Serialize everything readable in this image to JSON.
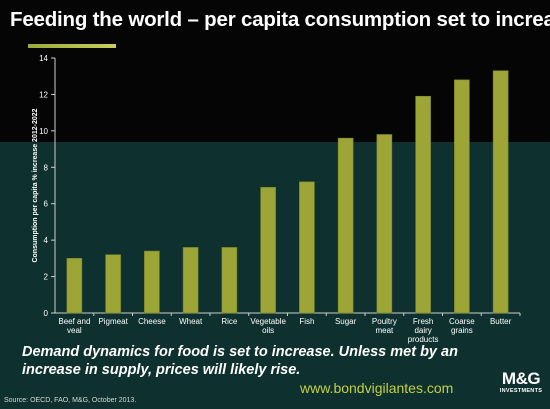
{
  "slide": {
    "title": "Feeding the world – per capita consumption set to increase",
    "caption": "Demand dynamics for food is set to increase. Unless met by an increase in supply, prices will likely rise.",
    "website": "www.bondvigilantes.com",
    "source": "Source: OECD,  FAO,  M&G, October 2013.",
    "logo": {
      "mark": "M&G",
      "sub": "INVESTMENTS"
    }
  },
  "colors": {
    "bar": "#9ca536",
    "bar_edge": "#7c8526",
    "axis": "#cfcfcf",
    "text": "#ffffff",
    "accent": "#c4d042"
  },
  "chart_data": {
    "type": "bar",
    "categories": [
      "Beef and veal",
      "Pigmeat",
      "Cheese",
      "Wheat",
      "Rice",
      "Vegetable oils",
      "Fish",
      "Sugar",
      "Poultry meat",
      "Fresh dairy products",
      "Coarse grains",
      "Butter"
    ],
    "category_lines": [
      [
        "Beef and",
        "veal"
      ],
      [
        "Pigmeat"
      ],
      [
        "Cheese"
      ],
      [
        "Wheat"
      ],
      [
        "Rice"
      ],
      [
        "Vegetable",
        "oils"
      ],
      [
        "Fish"
      ],
      [
        "Sugar"
      ],
      [
        "Poultry",
        "meat"
      ],
      [
        "Fresh",
        "dairy",
        "products"
      ],
      [
        "Coarse",
        "grains"
      ],
      [
        "Butter"
      ]
    ],
    "values": [
      3.0,
      3.2,
      3.4,
      3.6,
      3.6,
      6.9,
      7.2,
      9.6,
      9.8,
      11.9,
      12.8,
      13.3
    ],
    "ylabel": "Consumption  per capita % increase 2012-2022",
    "ylim": [
      0,
      14
    ],
    "yticks": [
      0,
      2,
      4,
      6,
      8,
      10,
      12,
      14
    ],
    "grid": false,
    "legend": "none"
  }
}
